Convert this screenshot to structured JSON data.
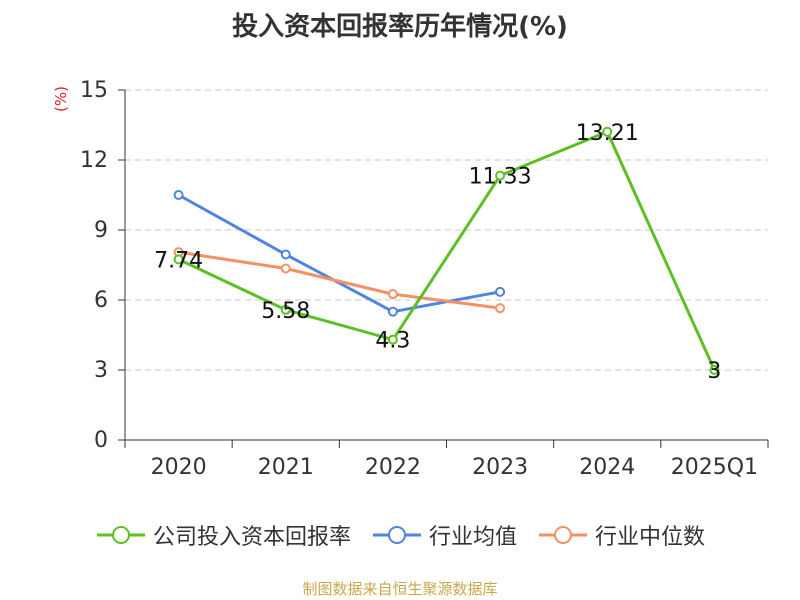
{
  "colors": {
    "company": "#5cc024",
    "industry_avg": "#5083e2",
    "industry_median": "#f59064",
    "unit": "#e02020",
    "source": "#c8a84b",
    "grid": "#c8c8c8",
    "axis": "#333333"
  },
  "chart_data": {
    "type": "line",
    "title": "投入资本回报率历年情况(%)",
    "ylabel": "(%)",
    "xlabel": "",
    "categories": [
      "2020",
      "2021",
      "2022",
      "2023",
      "2024",
      "2025Q1"
    ],
    "ylim": [
      0,
      15
    ],
    "yticks": [
      0,
      3,
      6,
      9,
      12,
      15
    ],
    "grid": true,
    "legend_position": "bottom",
    "series": [
      {
        "name": "公司投入资本回报率",
        "key": "company",
        "values": [
          7.74,
          5.58,
          4.3,
          11.33,
          13.21,
          3
        ],
        "labels": [
          "7.74",
          "5.58",
          "4.3",
          "11.33",
          "13.21",
          "3"
        ]
      },
      {
        "name": "行业均值",
        "key": "industry_avg",
        "values": [
          10.5,
          7.95,
          5.5,
          6.35,
          null,
          null
        ]
      },
      {
        "name": "行业中位数",
        "key": "industry_median",
        "values": [
          8.05,
          7.35,
          6.25,
          5.65,
          null,
          null
        ]
      }
    ],
    "source": "制图数据来自恒生聚源数据库"
  }
}
